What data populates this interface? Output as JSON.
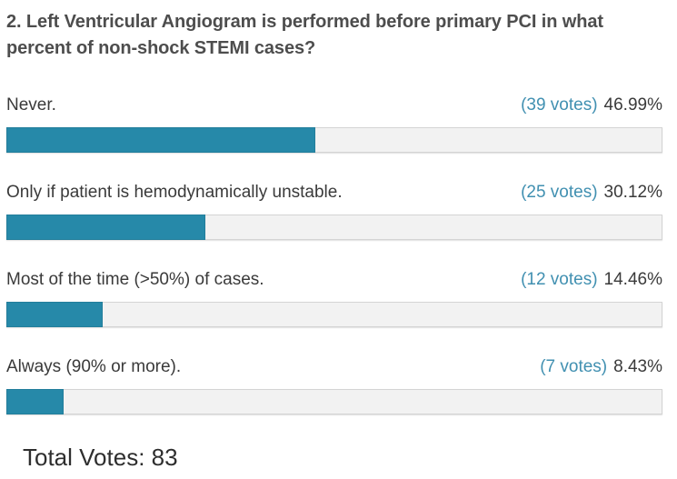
{
  "poll": {
    "question": "2. Left Ventricular Angiogram is performed before primary PCI in what percent of non-shock STEMI cases?",
    "options": [
      {
        "label": "Never.",
        "votes_label": "(39 votes)",
        "percent_label": "46.99%",
        "percent": 46.99
      },
      {
        "label": "Only if patient is hemodynamically unstable.",
        "votes_label": "(25 votes)",
        "percent_label": "30.12%",
        "percent": 30.12
      },
      {
        "label": "Most of the time (>50%) of cases.",
        "votes_label": "(12 votes)",
        "percent_label": "14.46%",
        "percent": 14.46
      },
      {
        "label": "Always (90% or more).",
        "votes_label": "(7 votes)",
        "percent_label": "8.43%",
        "percent": 8.43
      }
    ],
    "total_votes_label": "Total Votes: 83",
    "colors": {
      "bar": "#2689a9",
      "votes_text": "#4190b1",
      "track": "#f2f2f2",
      "track_border": "#d4d4d4",
      "question_text": "#4d4d4d",
      "label_text": "#3a3a3a"
    }
  },
  "chart_data": {
    "type": "bar",
    "orientation": "horizontal",
    "title": "2. Left Ventricular Angiogram is performed before primary PCI in what percent of non-shock STEMI cases?",
    "categories": [
      "Never.",
      "Only if patient is hemodynamically unstable.",
      "Most of the time (>50%) of cases.",
      "Always (90% or more)."
    ],
    "values": [
      46.99,
      30.12,
      14.46,
      8.43
    ],
    "votes": [
      39,
      25,
      12,
      7
    ],
    "total_votes": 83,
    "value_suffix": "%",
    "xlim": [
      0,
      100
    ],
    "grid": false,
    "legend": false,
    "bar_color": "#2689a9"
  }
}
